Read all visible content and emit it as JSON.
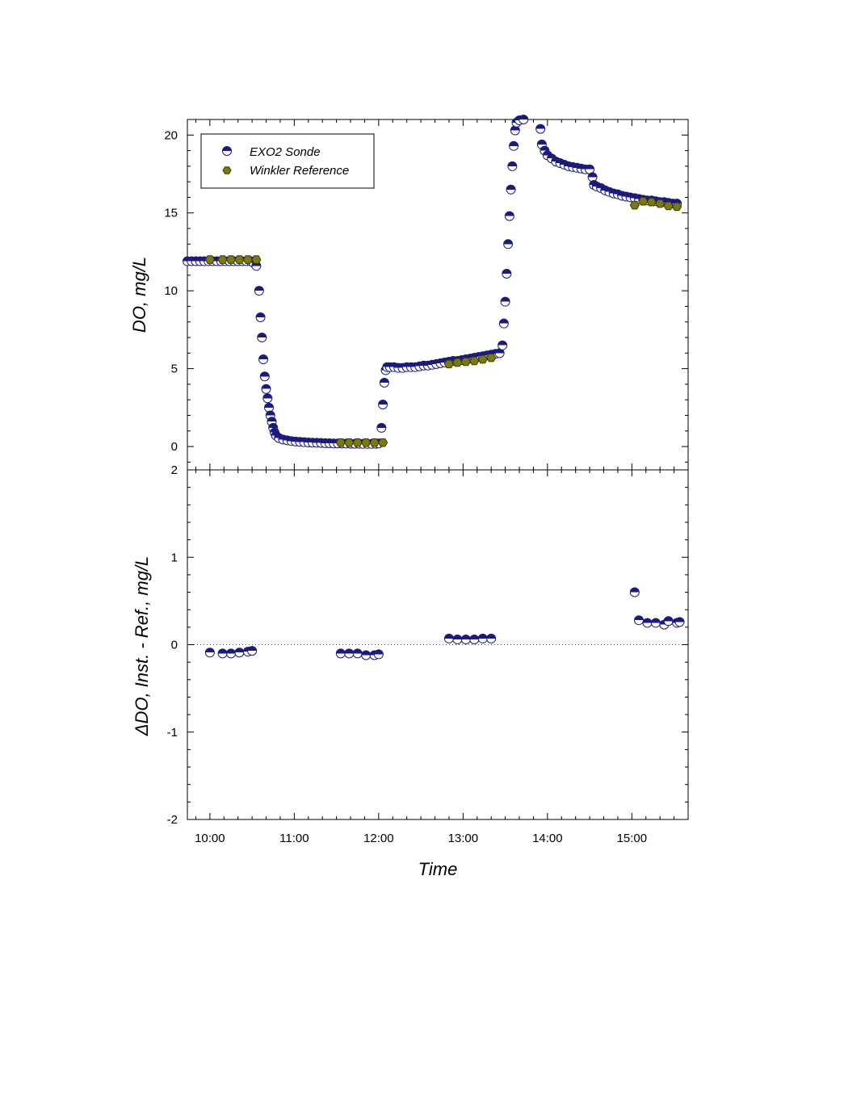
{
  "chart_data": [
    {
      "type": "scatter",
      "panel": "top",
      "xlabel": "",
      "ylabel": "DO, mg/L",
      "xlim": [
        "09:44",
        "15:40"
      ],
      "ylim": [
        -1.5,
        21
      ],
      "yticks": [
        0,
        5,
        10,
        15,
        20
      ],
      "grid": false,
      "legend": {
        "placement": "top-left"
      },
      "series": [
        {
          "name": "EXO2 Sonde",
          "marker": "half-filled-circle",
          "color": "#1a1a80",
          "points": [
            [
              "09:44",
              11.9
            ],
            [
              "09:47",
              11.9
            ],
            [
              "09:50",
              11.9
            ],
            [
              "09:53",
              11.9
            ],
            [
              "09:56",
              11.9
            ],
            [
              "09:59",
              11.9
            ],
            [
              "10:02",
              11.9
            ],
            [
              "10:05",
              11.9
            ],
            [
              "10:08",
              11.9
            ],
            [
              "10:11",
              11.9
            ],
            [
              "10:14",
              11.9
            ],
            [
              "10:17",
              11.9
            ],
            [
              "10:20",
              11.9
            ],
            [
              "10:23",
              11.9
            ],
            [
              "10:26",
              11.9
            ],
            [
              "10:29",
              11.9
            ],
            [
              "10:31",
              11.8
            ],
            [
              "10:33",
              11.6
            ],
            [
              "10:35",
              10.0
            ],
            [
              "10:36",
              8.3
            ],
            [
              "10:37",
              7.0
            ],
            [
              "10:38",
              5.6
            ],
            [
              "10:39",
              4.5
            ],
            [
              "10:40",
              3.7
            ],
            [
              "10:41",
              3.1
            ],
            [
              "10:42",
              2.5
            ],
            [
              "10:43",
              2.0
            ],
            [
              "10:44",
              1.6
            ],
            [
              "10:45",
              1.2
            ],
            [
              "10:46",
              0.9
            ],
            [
              "10:47",
              0.7
            ],
            [
              "10:49",
              0.55
            ],
            [
              "10:52",
              0.45
            ],
            [
              "10:55",
              0.4
            ],
            [
              "10:58",
              0.35
            ],
            [
              "11:01",
              0.32
            ],
            [
              "11:04",
              0.3
            ],
            [
              "11:07",
              0.28
            ],
            [
              "11:10",
              0.26
            ],
            [
              "11:13",
              0.25
            ],
            [
              "11:16",
              0.24
            ],
            [
              "11:19",
              0.23
            ],
            [
              "11:22",
              0.22
            ],
            [
              "11:25",
              0.21
            ],
            [
              "11:28",
              0.2
            ],
            [
              "11:31",
              0.2
            ],
            [
              "11:34",
              0.19
            ],
            [
              "11:37",
              0.19
            ],
            [
              "11:40",
              0.18
            ],
            [
              "11:43",
              0.18
            ],
            [
              "11:46",
              0.18
            ],
            [
              "11:49",
              0.17
            ],
            [
              "11:52",
              0.17
            ],
            [
              "11:55",
              0.17
            ],
            [
              "11:58",
              0.17
            ],
            [
              "12:00",
              0.2
            ],
            [
              "12:02",
              1.2
            ],
            [
              "12:03",
              2.7
            ],
            [
              "12:04",
              4.1
            ],
            [
              "12:05",
              4.9
            ],
            [
              "12:06",
              5.1
            ],
            [
              "12:08",
              5.1
            ],
            [
              "12:11",
              5.1
            ],
            [
              "12:14",
              5.05
            ],
            [
              "12:17",
              5.05
            ],
            [
              "12:20",
              5.1
            ],
            [
              "12:23",
              5.1
            ],
            [
              "12:26",
              5.1
            ],
            [
              "12:29",
              5.15
            ],
            [
              "12:32",
              5.2
            ],
            [
              "12:35",
              5.2
            ],
            [
              "12:38",
              5.25
            ],
            [
              "12:41",
              5.3
            ],
            [
              "12:44",
              5.35
            ],
            [
              "12:47",
              5.4
            ],
            [
              "12:50",
              5.45
            ],
            [
              "12:53",
              5.5
            ],
            [
              "12:56",
              5.5
            ],
            [
              "12:59",
              5.55
            ],
            [
              "13:02",
              5.6
            ],
            [
              "13:05",
              5.65
            ],
            [
              "13:08",
              5.7
            ],
            [
              "13:11",
              5.75
            ],
            [
              "13:14",
              5.8
            ],
            [
              "13:17",
              5.85
            ],
            [
              "13:20",
              5.9
            ],
            [
              "13:23",
              5.95
            ],
            [
              "13:26",
              6.0
            ],
            [
              "13:28",
              6.5
            ],
            [
              "13:29",
              7.9
            ],
            [
              "13:30",
              9.3
            ],
            [
              "13:31",
              11.1
            ],
            [
              "13:32",
              13.0
            ],
            [
              "13:33",
              14.8
            ],
            [
              "13:34",
              16.5
            ],
            [
              "13:35",
              18.0
            ],
            [
              "13:36",
              19.3
            ],
            [
              "13:37",
              20.3
            ],
            [
              "13:38",
              20.8
            ],
            [
              "13:40",
              20.95
            ],
            [
              "13:43",
              21.0
            ],
            [
              "13:55",
              20.4
            ],
            [
              "13:56",
              19.4
            ],
            [
              "13:58",
              19.0
            ],
            [
              "14:00",
              18.7
            ],
            [
              "14:03",
              18.5
            ],
            [
              "14:06",
              18.3
            ],
            [
              "14:09",
              18.2
            ],
            [
              "14:12",
              18.1
            ],
            [
              "14:15",
              18.0
            ],
            [
              "14:18",
              17.95
            ],
            [
              "14:21",
              17.9
            ],
            [
              "14:24",
              17.85
            ],
            [
              "14:27",
              17.8
            ],
            [
              "14:30",
              17.8
            ],
            [
              "14:32",
              17.3
            ],
            [
              "14:33",
              16.8
            ],
            [
              "14:35",
              16.7
            ],
            [
              "14:38",
              16.6
            ],
            [
              "14:41",
              16.45
            ],
            [
              "14:44",
              16.35
            ],
            [
              "14:47",
              16.25
            ],
            [
              "14:50",
              16.2
            ],
            [
              "14:53",
              16.1
            ],
            [
              "14:56",
              16.05
            ],
            [
              "14:59",
              16.0
            ],
            [
              "15:02",
              15.95
            ],
            [
              "15:05",
              15.9
            ],
            [
              "15:08",
              15.85
            ],
            [
              "15:11",
              15.8
            ],
            [
              "15:14",
              15.8
            ],
            [
              "15:17",
              15.75
            ],
            [
              "15:20",
              15.7
            ],
            [
              "15:23",
              15.7
            ],
            [
              "15:26",
              15.65
            ],
            [
              "15:29",
              15.6
            ],
            [
              "15:32",
              15.6
            ]
          ]
        },
        {
          "name": "Winkler Reference",
          "marker": "hexagon",
          "color": "#7a7a10",
          "points": [
            [
              "10:00",
              12.0
            ],
            [
              "10:09",
              12.0
            ],
            [
              "10:15",
              12.0
            ],
            [
              "10:21",
              12.0
            ],
            [
              "10:27",
              12.0
            ],
            [
              "10:33",
              12.0
            ],
            [
              "11:33",
              0.25
            ],
            [
              "11:39",
              0.25
            ],
            [
              "11:45",
              0.25
            ],
            [
              "11:51",
              0.25
            ],
            [
              "11:57",
              0.25
            ],
            [
              "12:03",
              0.25
            ],
            [
              "12:50",
              5.3
            ],
            [
              "12:56",
              5.4
            ],
            [
              "13:02",
              5.45
            ],
            [
              "13:08",
              5.5
            ],
            [
              "13:14",
              5.6
            ],
            [
              "13:20",
              5.7
            ],
            [
              "15:02",
              15.5
            ],
            [
              "15:08",
              15.75
            ],
            [
              "15:14",
              15.7
            ],
            [
              "15:20",
              15.6
            ],
            [
              "15:26",
              15.45
            ],
            [
              "15:32",
              15.4
            ]
          ]
        }
      ]
    },
    {
      "type": "scatter",
      "panel": "bottom",
      "xlabel": "Time",
      "ylabel": "ΔDO, Inst. - Ref., mg/L",
      "xlim": [
        "09:44",
        "15:40"
      ],
      "ylim": [
        -2,
        2
      ],
      "yticks": [
        -2,
        -1,
        0,
        1,
        2
      ],
      "xticks": [
        "10:00",
        "11:00",
        "12:00",
        "13:00",
        "14:00",
        "15:00"
      ],
      "reference_line": {
        "y": 0,
        "style": "dotted"
      },
      "grid": false,
      "series": [
        {
          "name": "",
          "marker": "half-filled-circle",
          "color": "#1a1a80",
          "points": [
            [
              "10:00",
              -0.09
            ],
            [
              "10:09",
              -0.1
            ],
            [
              "10:15",
              -0.1
            ],
            [
              "10:21",
              -0.09
            ],
            [
              "10:27",
              -0.08
            ],
            [
              "10:30",
              -0.07
            ],
            [
              "11:33",
              -0.1
            ],
            [
              "11:39",
              -0.1
            ],
            [
              "11:45",
              -0.1
            ],
            [
              "11:51",
              -0.12
            ],
            [
              "11:57",
              -0.12
            ],
            [
              "12:00",
              -0.11
            ],
            [
              "12:50",
              0.07
            ],
            [
              "12:56",
              0.06
            ],
            [
              "13:02",
              0.06
            ],
            [
              "13:08",
              0.06
            ],
            [
              "13:14",
              0.07
            ],
            [
              "13:20",
              0.07
            ],
            [
              "15:02",
              0.6
            ],
            [
              "15:05",
              0.28
            ],
            [
              "15:11",
              0.25
            ],
            [
              "15:17",
              0.25
            ],
            [
              "15:23",
              0.23
            ],
            [
              "15:26",
              0.27
            ],
            [
              "15:32",
              0.25
            ],
            [
              "15:34",
              0.26
            ]
          ]
        }
      ]
    }
  ]
}
